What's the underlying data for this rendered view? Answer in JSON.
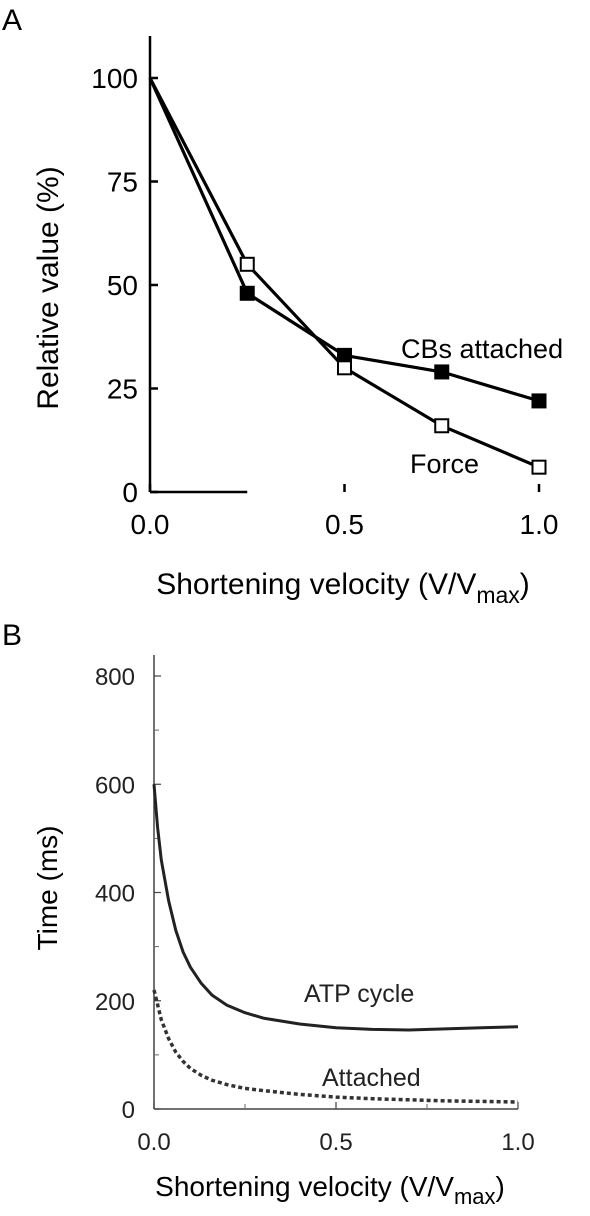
{
  "chart_data": [
    {
      "panel": "A",
      "type": "line",
      "xlabel": "Shortening velocity (V/V",
      "xlabel_sub": "max",
      "xlabel_end": ")",
      "ylabel": "Relative value (%)",
      "xlim": [
        0,
        1.0
      ],
      "ylim": [
        0,
        110
      ],
      "xticks": [
        0,
        0.5,
        1.0
      ],
      "xtick_labels": [
        "0.0",
        "0.5",
        "1.0"
      ],
      "yticks": [
        0,
        25,
        50,
        75,
        100
      ],
      "ytick_labels": [
        "0",
        "25",
        "50",
        "75",
        "100"
      ],
      "grid": false,
      "series": [
        {
          "name": "CBs attached",
          "marker": "filled-square",
          "color": "#000000",
          "x": [
            0,
            0.25,
            0.5,
            0.75,
            1.0
          ],
          "y": [
            100,
            48,
            33,
            29,
            22
          ]
        },
        {
          "name": "Force",
          "marker": "open-square",
          "color": "#000000",
          "x": [
            0,
            0.25,
            0.5,
            0.75,
            1.0
          ],
          "y": [
            100,
            55,
            30,
            16,
            6
          ]
        }
      ]
    },
    {
      "panel": "B",
      "type": "line",
      "xlabel": "Shortening velocity (V/V",
      "xlabel_sub": "max",
      "xlabel_end": ")",
      "ylabel": "Time (ms)",
      "xlim": [
        0,
        1.0
      ],
      "ylim": [
        0,
        800
      ],
      "xticks": [
        0,
        0.5,
        1.0
      ],
      "xtick_labels": [
        "0.0",
        "0.5",
        "1.0"
      ],
      "yticks": [
        0,
        200,
        400,
        600,
        800
      ],
      "ytick_labels": [
        "0",
        "200",
        "400",
        "600",
        "800"
      ],
      "grid": false,
      "series": [
        {
          "name": "ATP cycle",
          "style": "solid",
          "color": "#222222",
          "x": [
            0,
            0.01,
            0.02,
            0.04,
            0.06,
            0.08,
            0.1,
            0.13,
            0.16,
            0.2,
            0.25,
            0.3,
            0.4,
            0.5,
            0.6,
            0.7,
            0.8,
            0.9,
            1.0
          ],
          "y": [
            600,
            520,
            460,
            385,
            330,
            290,
            262,
            232,
            210,
            192,
            178,
            168,
            157,
            150,
            147,
            146,
            148,
            150,
            152
          ]
        },
        {
          "name": "Attached",
          "style": "dotted",
          "color": "#333333",
          "x": [
            0,
            0.02,
            0.04,
            0.06,
            0.08,
            0.1,
            0.13,
            0.16,
            0.2,
            0.25,
            0.3,
            0.4,
            0.5,
            0.6,
            0.7,
            0.8,
            0.9,
            1.0
          ],
          "y": [
            220,
            165,
            130,
            105,
            88,
            75,
            62,
            53,
            45,
            38,
            34,
            27,
            22,
            19,
            17,
            15,
            14,
            13
          ]
        }
      ]
    }
  ],
  "panel_labels": [
    "A",
    "B"
  ]
}
